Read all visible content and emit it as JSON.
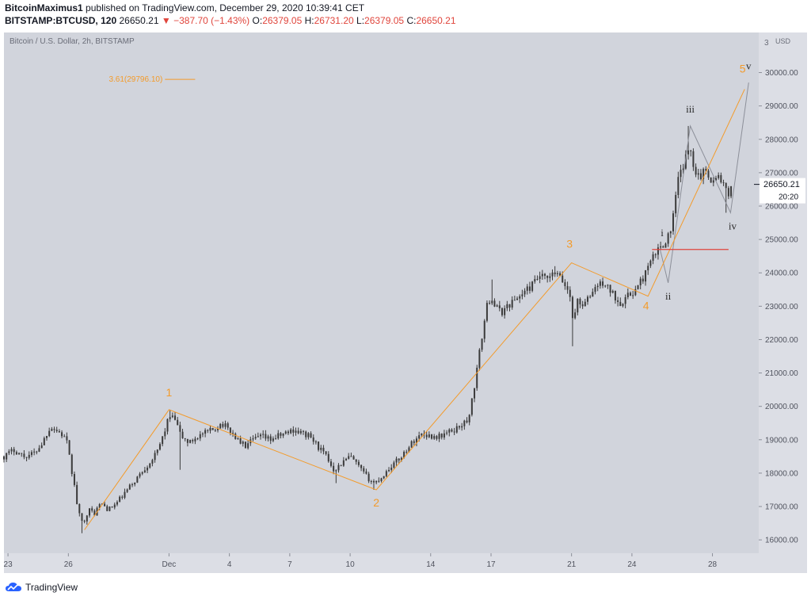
{
  "header": {
    "author": "BitcoinMaximus1",
    "published_text": "published on TradingView.com, December 29, 2020 10:39:41 CET",
    "symbol": "BITSTAMP:BTCUSD, 120",
    "last": "26650.21",
    "change": "−387.70 (−1.43%)",
    "o_label": "O:",
    "o_value": "26379.05",
    "h_label": "H:",
    "h_value": "26731.20",
    "l_label": "L:",
    "l_value": "26379.05",
    "c_label": "C:",
    "c_value": "26650.21"
  },
  "footer": {
    "brand": "TradingView"
  },
  "colors": {
    "chart_bg": "#d1d4dc",
    "axis_bg": "#dcdee5",
    "candle": "#3a3a3a",
    "wave_orange": "#f39b2b",
    "wave_grey": "#8c8f99",
    "support_red": "#e0453c"
  },
  "chart_data": {
    "type": "candlestick",
    "title": "Bitcoin / U.S. Dollar, 2h, BITSTAMP",
    "y_axis_unit": "USD",
    "ylim": [
      15600,
      31200
    ],
    "y_ticks": [
      16000,
      17000,
      18000,
      19000,
      20000,
      21000,
      22000,
      23000,
      24000,
      25000,
      26000,
      27000,
      28000,
      29000,
      30000
    ],
    "y_tick_labels": [
      "16000.00",
      "17000.00",
      "18000.00",
      "19000.00",
      "20000.00",
      "21000.00",
      "22000.00",
      "23000.00",
      "24000.00",
      "25000.00",
      "26000.00",
      "27000.00",
      "28000.00",
      "29000.00",
      "30000.00"
    ],
    "y_axis_top_label": "3",
    "last_price": 26650.21,
    "last_price_label": "26650.21",
    "countdown": "20:20",
    "x_domain": [
      22.8,
      60.3
    ],
    "x_ticks": [
      {
        "pos": 23,
        "label": "23"
      },
      {
        "pos": 26,
        "label": "26"
      },
      {
        "pos": 31,
        "label": "Dec"
      },
      {
        "pos": 34,
        "label": "4"
      },
      {
        "pos": 37,
        "label": "7"
      },
      {
        "pos": 40,
        "label": "10"
      },
      {
        "pos": 44,
        "label": "14"
      },
      {
        "pos": 47,
        "label": "17"
      },
      {
        "pos": 51,
        "label": "21"
      },
      {
        "pos": 54,
        "label": "24"
      },
      {
        "pos": 58,
        "label": "28"
      }
    ],
    "price_path": [
      [
        22.8,
        18500
      ],
      [
        23.3,
        18700
      ],
      [
        23.8,
        18500
      ],
      [
        24.3,
        18600
      ],
      [
        24.7,
        18900
      ],
      [
        25.1,
        19400
      ],
      [
        25.6,
        19200
      ],
      [
        25.9,
        19000
      ],
      [
        26.1,
        18300
      ],
      [
        26.3,
        17600
      ],
      [
        26.5,
        16800
      ],
      [
        26.7,
        16500
      ],
      [
        27.0,
        16900
      ],
      [
        27.3,
        16800
      ],
      [
        27.6,
        17100
      ],
      [
        28.0,
        16900
      ],
      [
        28.4,
        17100
      ],
      [
        28.8,
        17400
      ],
      [
        29.2,
        17700
      ],
      [
        29.6,
        18000
      ],
      [
        30.0,
        18300
      ],
      [
        30.4,
        18600
      ],
      [
        30.8,
        19300
      ],
      [
        31.0,
        19700
      ],
      [
        31.3,
        19600
      ],
      [
        31.6,
        19100
      ],
      [
        32.0,
        18900
      ],
      [
        32.4,
        19100
      ],
      [
        32.8,
        19200
      ],
      [
        33.2,
        19300
      ],
      [
        33.6,
        19500
      ],
      [
        34.0,
        19300
      ],
      [
        34.4,
        19000
      ],
      [
        34.8,
        18800
      ],
      [
        35.2,
        19000
      ],
      [
        35.6,
        19100
      ],
      [
        36.0,
        19000
      ],
      [
        36.4,
        19100
      ],
      [
        36.8,
        19200
      ],
      [
        37.2,
        19300
      ],
      [
        37.6,
        19200
      ],
      [
        38.0,
        19100
      ],
      [
        38.4,
        18800
      ],
      [
        38.8,
        18500
      ],
      [
        39.2,
        18100
      ],
      [
        39.6,
        18300
      ],
      [
        40.0,
        18500
      ],
      [
        40.4,
        18200
      ],
      [
        40.8,
        17900
      ],
      [
        41.2,
        17700
      ],
      [
        41.6,
        17900
      ],
      [
        42.0,
        18200
      ],
      [
        42.4,
        18400
      ],
      [
        42.8,
        18700
      ],
      [
        43.2,
        19000
      ],
      [
        43.6,
        19200
      ],
      [
        44.0,
        19100
      ],
      [
        44.4,
        19100
      ],
      [
        44.8,
        19200
      ],
      [
        45.2,
        19300
      ],
      [
        45.6,
        19500
      ],
      [
        45.8,
        19500
      ],
      [
        46.0,
        20000
      ],
      [
        46.2,
        20700
      ],
      [
        46.4,
        21500
      ],
      [
        46.6,
        22300
      ],
      [
        46.8,
        23000
      ],
      [
        47.0,
        23300
      ],
      [
        47.2,
        23000
      ],
      [
        47.5,
        22800
      ],
      [
        47.8,
        23000
      ],
      [
        48.2,
        23200
      ],
      [
        48.6,
        23400
      ],
      [
        49.0,
        23600
      ],
      [
        49.4,
        23900
      ],
      [
        49.8,
        23800
      ],
      [
        50.2,
        24000
      ],
      [
        50.6,
        23700
      ],
      [
        50.9,
        23400
      ],
      [
        51.1,
        22500
      ],
      [
        51.3,
        23200
      ],
      [
        51.6,
        23000
      ],
      [
        51.9,
        23300
      ],
      [
        52.2,
        23600
      ],
      [
        52.6,
        23700
      ],
      [
        53.0,
        23400
      ],
      [
        53.4,
        23100
      ],
      [
        53.8,
        23300
      ],
      [
        54.2,
        23500
      ],
      [
        54.6,
        23900
      ],
      [
        55.0,
        24400
      ],
      [
        55.3,
        24700
      ],
      [
        55.6,
        24900
      ],
      [
        55.9,
        25200
      ],
      [
        56.1,
        25900
      ],
      [
        56.3,
        26800
      ],
      [
        56.6,
        27300
      ],
      [
        56.9,
        27800
      ],
      [
        57.1,
        27100
      ],
      [
        57.4,
        26900
      ],
      [
        57.7,
        27100
      ],
      [
        58.0,
        26700
      ],
      [
        58.3,
        26900
      ],
      [
        58.6,
        26600
      ],
      [
        58.8,
        26200
      ],
      [
        59.0,
        26650
      ]
    ],
    "spikes": [
      {
        "x": 26.7,
        "low": 16200
      },
      {
        "x": 31.0,
        "high": 19900
      },
      {
        "x": 31.5,
        "low": 18100
      },
      {
        "x": 39.3,
        "low": 17700
      },
      {
        "x": 41.2,
        "low": 17500
      },
      {
        "x": 47.1,
        "high": 23800
      },
      {
        "x": 50.2,
        "high": 24200
      },
      {
        "x": 51.1,
        "low": 21800
      },
      {
        "x": 56.8,
        "high": 28400
      },
      {
        "x": 58.7,
        "low": 25800
      }
    ],
    "primary_wave": {
      "points": [
        [
          26.8,
          16300
        ],
        [
          31.0,
          19900
        ],
        [
          41.3,
          17500
        ],
        [
          51.0,
          24300
        ],
        [
          54.8,
          23300
        ],
        [
          59.6,
          29500
        ]
      ],
      "labels": [
        {
          "x": 31.0,
          "y": 20300,
          "text": "1"
        },
        {
          "x": 41.3,
          "y": 17000,
          "text": "2"
        },
        {
          "x": 50.9,
          "y": 24750,
          "text": "3"
        },
        {
          "x": 54.7,
          "y": 22900,
          "text": "4"
        },
        {
          "x": 59.5,
          "y": 30000,
          "text": "5"
        }
      ]
    },
    "sub_wave": {
      "points": [
        [
          55.4,
          24700
        ],
        [
          55.8,
          23700
        ],
        [
          56.9,
          28400
        ],
        [
          58.9,
          25800
        ],
        [
          59.8,
          29700
        ]
      ],
      "labels": [
        {
          "x": 55.5,
          "y": 25100,
          "text": "i"
        },
        {
          "x": 55.8,
          "y": 23200,
          "text": "ii"
        },
        {
          "x": 56.9,
          "y": 28800,
          "text": "iii"
        },
        {
          "x": 59.0,
          "y": 25300,
          "text": "iv"
        },
        {
          "x": 59.8,
          "y": 30100,
          "text": "v"
        }
      ]
    },
    "fib_target": {
      "x1": 30.8,
      "x2": 32.3,
      "y": 29796.1,
      "label": "3.61(29796.10)"
    },
    "support_line": {
      "x1": 55.0,
      "x2": 58.8,
      "y": 24700
    }
  }
}
